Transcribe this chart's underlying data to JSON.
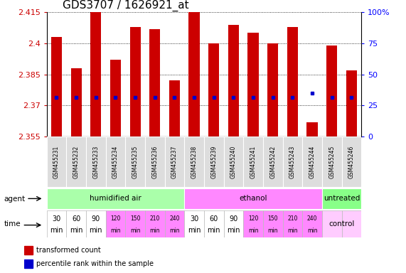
{
  "title": "GDS3707 / 1626921_at",
  "samples": [
    "GSM455231",
    "GSM455232",
    "GSM455233",
    "GSM455234",
    "GSM455235",
    "GSM455236",
    "GSM455237",
    "GSM455238",
    "GSM455239",
    "GSM455240",
    "GSM455241",
    "GSM455242",
    "GSM455243",
    "GSM455244",
    "GSM455245",
    "GSM455246"
  ],
  "bar_tops": [
    2.403,
    2.388,
    2.415,
    2.392,
    2.408,
    2.407,
    2.382,
    2.415,
    2.4,
    2.409,
    2.405,
    2.4,
    2.408,
    2.362,
    2.399,
    2.387
  ],
  "bar_bottom": 2.355,
  "percentile_y": [
    2.374,
    2.374,
    2.374,
    2.374,
    2.374,
    2.374,
    2.374,
    2.374,
    2.374,
    2.374,
    2.374,
    2.374,
    2.374,
    2.376,
    2.374,
    2.374
  ],
  "ylim_min": 2.355,
  "ylim_max": 2.415,
  "yticks": [
    2.355,
    2.37,
    2.385,
    2.4,
    2.415
  ],
  "ytick_labels": [
    "2.355",
    "2.37",
    "2.385",
    "2.4",
    "2.415"
  ],
  "right_ytick_percents": [
    0,
    25,
    50,
    75,
    100
  ],
  "right_ytick_labels": [
    "0",
    "25",
    "50",
    "75",
    "100%"
  ],
  "bar_color": "#cc0000",
  "percentile_color": "#0000cc",
  "agent_groups": [
    {
      "label": "humidified air",
      "start": 0,
      "end": 7,
      "color": "#aaffaa"
    },
    {
      "label": "ethanol",
      "start": 7,
      "end": 14,
      "color": "#ff88ff"
    },
    {
      "label": "untreated",
      "start": 14,
      "end": 16,
      "color": "#88ff88"
    }
  ],
  "time_labels": [
    "30\nmin",
    "60\nmin",
    "90\nmin",
    "120\nmin",
    "150\nmin",
    "210\nmin",
    "240\nmin",
    "30\nmin",
    "60\nmin",
    "90\nmin",
    "120\nmin",
    "150\nmin",
    "210\nmin",
    "240\nmin"
  ],
  "time_colors": [
    "#ffffff",
    "#ffffff",
    "#ffffff",
    "#ff88ff",
    "#ff88ff",
    "#ff88ff",
    "#ff88ff",
    "#ffffff",
    "#ffffff",
    "#ffffff",
    "#ff88ff",
    "#ff88ff",
    "#ff88ff",
    "#ff88ff"
  ],
  "time_large_font": [
    0,
    1,
    2,
    7,
    8,
    9
  ],
  "time_small_font": [
    3,
    4,
    5,
    6,
    10,
    11,
    12,
    13
  ],
  "time_control_label": "control",
  "time_control_color": "#ffccff",
  "legend_items": [
    {
      "label": "transformed count",
      "color": "#cc0000"
    },
    {
      "label": "percentile rank within the sample",
      "color": "#0000cc"
    }
  ],
  "bar_width": 0.55,
  "grid_color": "#000000",
  "bg_color": "#ffffff",
  "sample_label_color": "#000000",
  "xlabel_gray": "#aaaaaa"
}
